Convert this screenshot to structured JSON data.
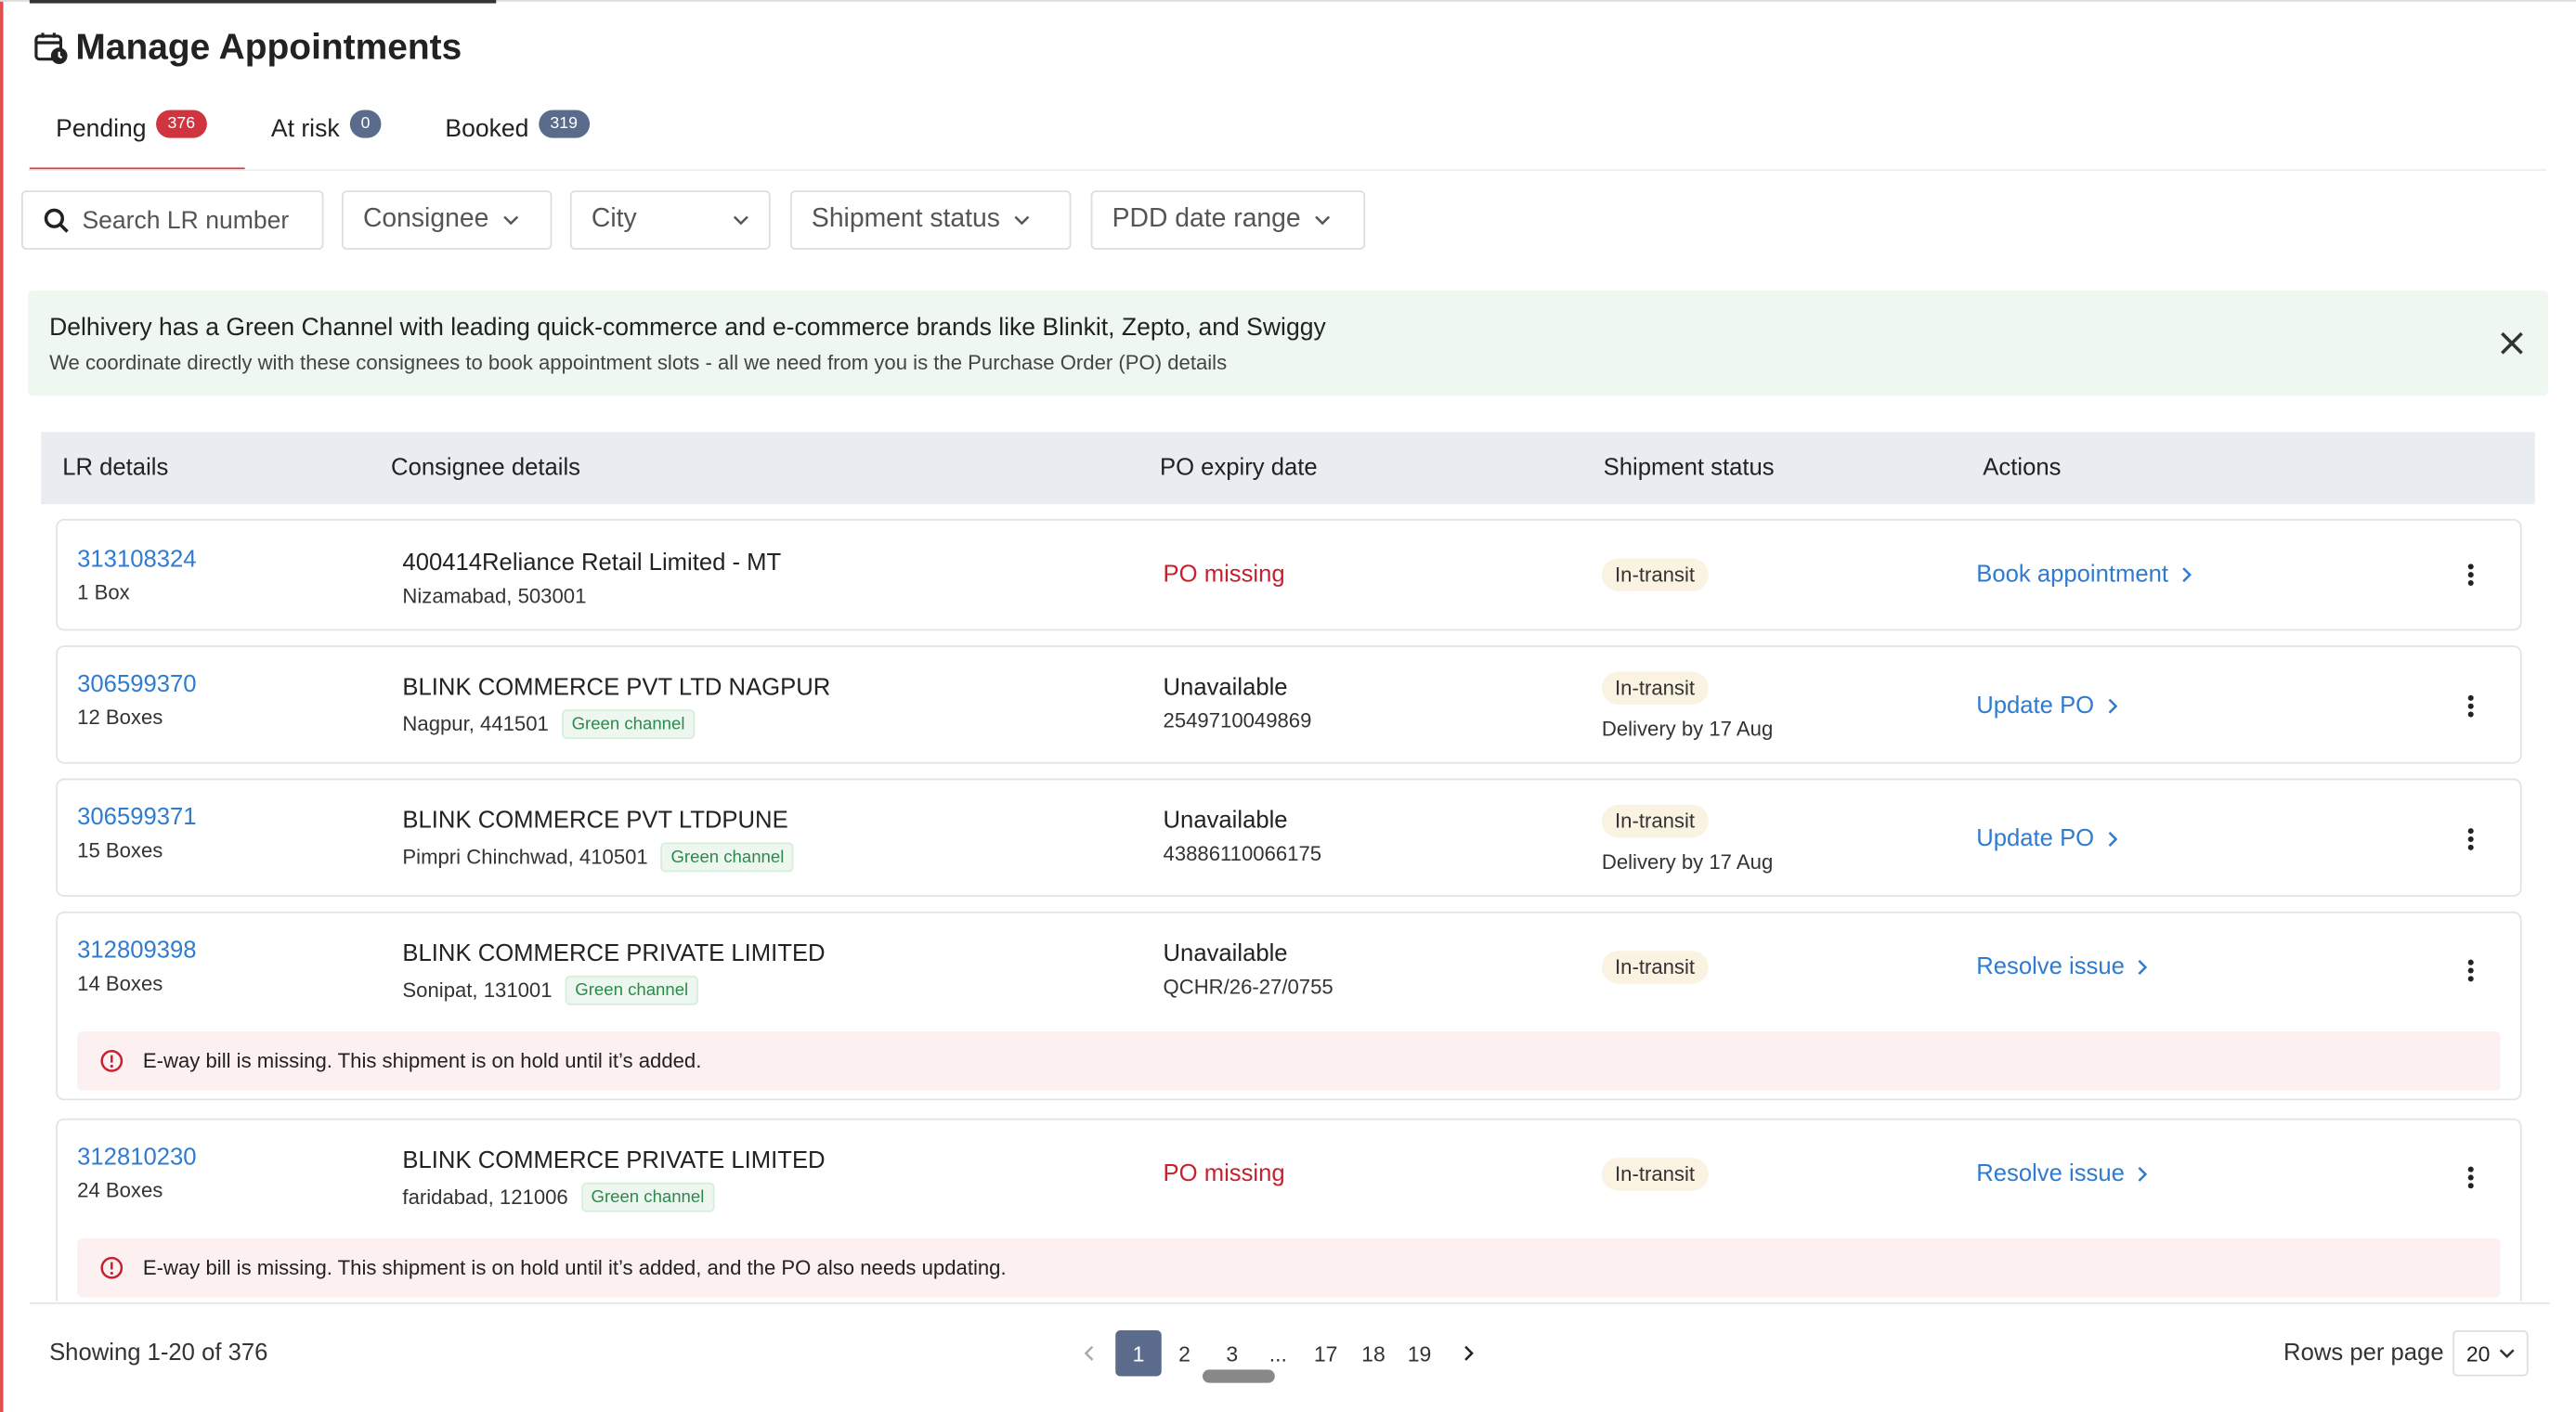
{
  "header": {
    "title": "Manage Appointments"
  },
  "tabs": [
    {
      "label": "Pending",
      "count": 376
    },
    {
      "label": "At risk",
      "count": 0
    },
    {
      "label": "Booked",
      "count": 319
    }
  ],
  "filters": {
    "search": "Search LR number",
    "dropdowns": [
      "Consignee",
      "City",
      "Shipment status",
      "PDD date range"
    ]
  },
  "banner": {
    "title": "Delhivery has a Green Channel with leading quick-commerce and e-commerce brands like Blinkit, Zepto, and Swiggy",
    "text": "We coordinate directly with these consignees to book appointment slots - all we need from you is the Purchase Order (PO) details"
  },
  "table": {
    "headers": [
      "LR details",
      "Consignee details",
      "PO expiry date",
      "Shipment status",
      "Actions"
    ],
    "rows": [
      {
        "lr": "313108324",
        "boxes": "1 Box",
        "consignee": "400414Reliance Retail Limited - MT",
        "location": "Nizamabad, 503001",
        "po": "PO missing",
        "status": "In-transit",
        "action": "Book appointment"
      },
      {
        "lr": "306599370",
        "boxes": "12 Boxes",
        "consignee": "BLINK COMMERCE PVT LTD NAGPUR",
        "location": "Nagpur, 441501",
        "tag": "Green channel",
        "po": "Unavailable",
        "po_number": "2549710049869",
        "status": "In-transit",
        "delivery": "Delivery by 17 Aug",
        "action": "Update PO"
      },
      {
        "lr": "306599371",
        "boxes": "15 Boxes",
        "consignee": "BLINK COMMERCE PVT LTDPUNE",
        "location": "Pimpri Chinchwad, 410501",
        "tag": "Green channel",
        "po": "Unavailable",
        "po_number": "43886110066175",
        "status": "In-transit",
        "delivery": "Delivery by 17 Aug",
        "action": "Update PO"
      },
      {
        "lr": "312809398",
        "boxes": "14 Boxes",
        "consignee": "BLINK COMMERCE PRIVATE LIMITED",
        "location": "Sonipat, 131001",
        "tag": "Green channel",
        "po": "Unavailable",
        "po_number": "QCHR/26-27/0755",
        "status": "In-transit",
        "action": "Resolve issue",
        "alert": "E-way bill is missing. This shipment is on hold until it’s added."
      },
      {
        "lr": "312810230",
        "boxes": "24 Boxes",
        "consignee": "BLINK COMMERCE PRIVATE LIMITED",
        "location": "faridabad, 121006",
        "tag": "Green channel",
        "po": "PO missing",
        "status": "In-transit",
        "action": "Resolve issue",
        "alert": "E-way bill is missing. This shipment is on hold until it’s added, and the PO also needs updating."
      }
    ]
  },
  "footer": {
    "showing": "Showing 1-20 of 376",
    "pages": [
      1,
      2,
      3,
      "...",
      17,
      18,
      19
    ],
    "current_page": 1,
    "rows_label": "Rows per page",
    "rows_value": 20
  }
}
